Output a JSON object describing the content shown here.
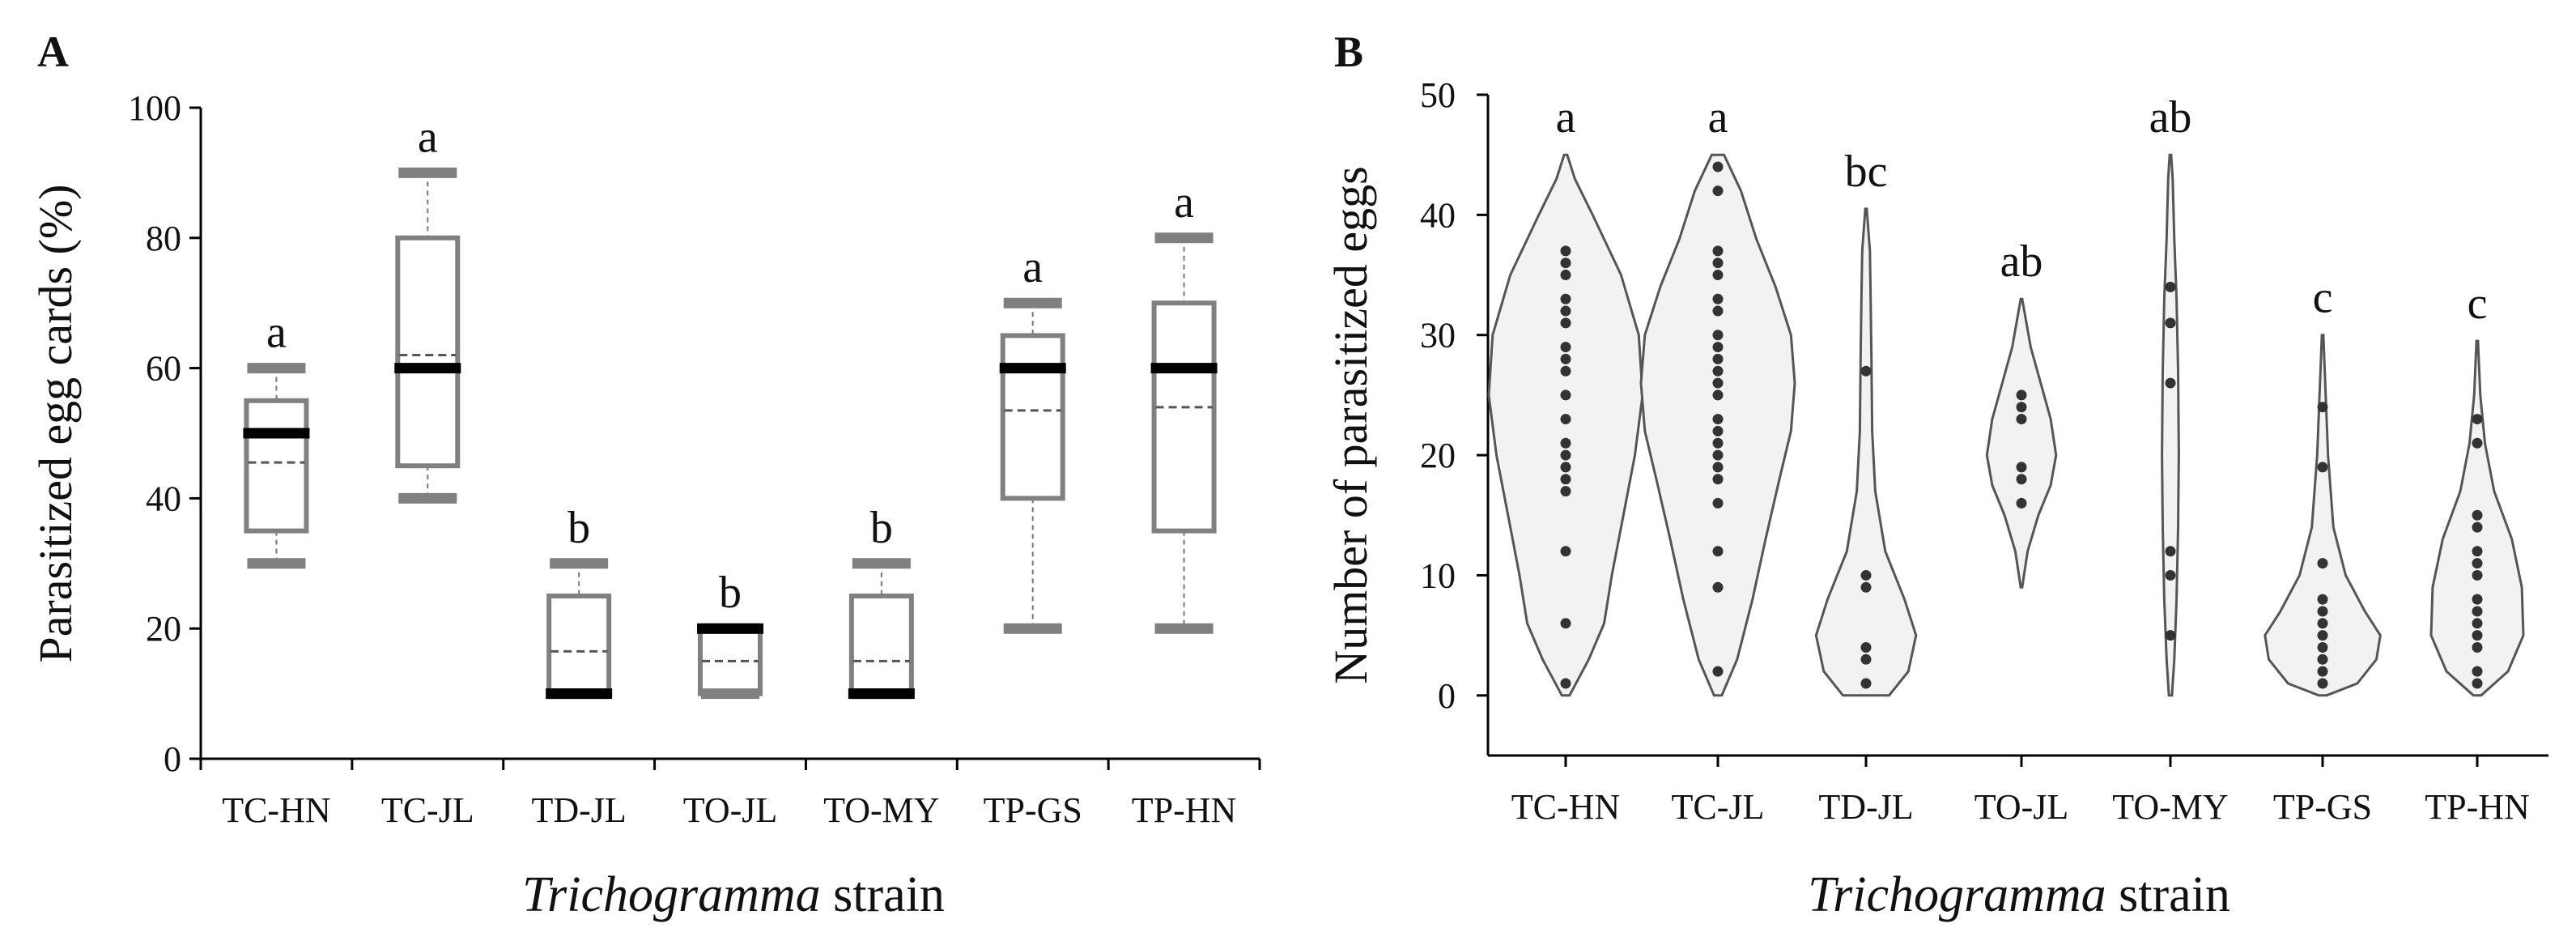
{
  "colors": {
    "box": "#808080",
    "median": "#000000",
    "mean": "#555555",
    "violin_fill": "#f2f2f2",
    "violin_stroke": "#555555",
    "dot": "#333333"
  },
  "chart_data": [
    {
      "panel_label": "A",
      "type": "box",
      "ylabel": "Parasitized egg cards (%)",
      "xlabel_italic": "Trichogramma",
      "xlabel_rest": " strain",
      "ylim": [
        0,
        100
      ],
      "yticks": [
        "0",
        "20",
        "40",
        "60",
        "80",
        "100"
      ],
      "categories": [
        "TC-HN",
        "TC-JL",
        "TD-JL",
        "TO-JL",
        "TO-MY",
        "TP-GS",
        "TP-HN"
      ],
      "boxes": [
        {
          "min": 30,
          "q1": 35,
          "median": 50,
          "mean": 45.5,
          "q3": 55,
          "max": 60,
          "letter": "a"
        },
        {
          "min": 40,
          "q1": 45,
          "median": 60,
          "mean": 62,
          "q3": 80,
          "max": 90,
          "letter": "a"
        },
        {
          "min": 10,
          "q1": 10,
          "median": 10,
          "mean": 16.5,
          "q3": 25,
          "max": 30,
          "letter": "b"
        },
        {
          "min": 10,
          "q1": 10,
          "median": 20,
          "mean": 15,
          "q3": 20,
          "max": 20,
          "letter": "b"
        },
        {
          "min": 10,
          "q1": 10,
          "median": 10,
          "mean": 15,
          "q3": 25,
          "max": 30,
          "letter": "b"
        },
        {
          "min": 20,
          "q1": 40,
          "median": 60,
          "mean": 53.5,
          "q3": 65,
          "max": 70,
          "letter": "a"
        },
        {
          "min": 20,
          "q1": 35,
          "median": 60,
          "mean": 54,
          "q3": 70,
          "max": 80,
          "letter": "a"
        }
      ]
    },
    {
      "panel_label": "B",
      "type": "violin",
      "ylabel": "Number of parasitized eggs",
      "xlabel_italic": "Trichogramma",
      "xlabel_rest": " strain",
      "ylim": [
        -5,
        50
      ],
      "yticks": [
        "0",
        "10",
        "20",
        "30",
        "40",
        "50"
      ],
      "categories": [
        "TC-HN",
        "TC-JL",
        "TD-JL",
        "TO-JL",
        "TO-MY",
        "TP-GS",
        "TP-HN"
      ],
      "violins": [
        {
          "letter": "a",
          "profile": [
            [
              0,
              0.05
            ],
            [
              3,
              0.3
            ],
            [
              6,
              0.5
            ],
            [
              10,
              0.6
            ],
            [
              15,
              0.75
            ],
            [
              20,
              0.9
            ],
            [
              25,
              1.0
            ],
            [
              30,
              0.95
            ],
            [
              35,
              0.72
            ],
            [
              40,
              0.35
            ],
            [
              43,
              0.12
            ],
            [
              45,
              0.02
            ]
          ],
          "points": [
            1,
            6,
            12,
            17,
            18,
            19,
            20,
            21,
            23,
            25,
            27,
            28,
            29,
            31,
            32,
            33,
            35,
            36,
            37
          ]
        },
        {
          "letter": "a",
          "profile": [
            [
              0,
              0.05
            ],
            [
              3,
              0.25
            ],
            [
              8,
              0.45
            ],
            [
              13,
              0.62
            ],
            [
              18,
              0.8
            ],
            [
              22,
              0.95
            ],
            [
              26,
              1.0
            ],
            [
              30,
              0.95
            ],
            [
              34,
              0.75
            ],
            [
              38,
              0.5
            ],
            [
              42,
              0.3
            ],
            [
              45,
              0.08
            ]
          ],
          "points": [
            2,
            9,
            12,
            16,
            18,
            19,
            20,
            21,
            22,
            23,
            25,
            26,
            27,
            28,
            29,
            30,
            32,
            33,
            35,
            36,
            37,
            42,
            44
          ]
        },
        {
          "letter": "bc",
          "profile": [
            [
              0,
              0.3
            ],
            [
              2,
              0.55
            ],
            [
              5,
              0.65
            ],
            [
              8,
              0.5
            ],
            [
              12,
              0.25
            ],
            [
              17,
              0.12
            ],
            [
              22,
              0.08
            ],
            [
              28,
              0.07
            ],
            [
              33,
              0.06
            ],
            [
              37,
              0.05
            ],
            [
              40.5,
              0.01
            ]
          ],
          "points": [
            1,
            3,
            4,
            9,
            10,
            27
          ]
        },
        {
          "letter": "ab",
          "profile": [
            [
              9,
              0.01
            ],
            [
              12,
              0.08
            ],
            [
              15,
              0.22
            ],
            [
              17.5,
              0.38
            ],
            [
              20,
              0.45
            ],
            [
              23,
              0.38
            ],
            [
              26,
              0.25
            ],
            [
              29,
              0.12
            ],
            [
              33,
              0.01
            ]
          ],
          "points": [
            16,
            18,
            19,
            23,
            24,
            25
          ]
        },
        {
          "letter": "ab",
          "profile": [
            [
              0,
              0.02
            ],
            [
              3,
              0.05
            ],
            [
              8,
              0.08
            ],
            [
              14,
              0.1
            ],
            [
              20,
              0.11
            ],
            [
              27,
              0.1
            ],
            [
              33,
              0.08
            ],
            [
              38,
              0.05
            ],
            [
              43,
              0.03
            ],
            [
              45,
              0.01
            ]
          ],
          "points": [
            5,
            10,
            12,
            26,
            31,
            34
          ]
        },
        {
          "letter": "c",
          "profile": [
            [
              0,
              0.05
            ],
            [
              1,
              0.45
            ],
            [
              3,
              0.7
            ],
            [
              5,
              0.75
            ],
            [
              7,
              0.55
            ],
            [
              10,
              0.3
            ],
            [
              14,
              0.14
            ],
            [
              20,
              0.07
            ],
            [
              25,
              0.04
            ],
            [
              30,
              0.01
            ]
          ],
          "points": [
            1,
            2,
            3,
            4,
            5,
            6,
            7,
            8,
            11,
            19,
            24
          ]
        },
        {
          "letter": "c",
          "profile": [
            [
              0,
              0.05
            ],
            [
              2,
              0.4
            ],
            [
              5,
              0.6
            ],
            [
              9,
              0.58
            ],
            [
              13,
              0.45
            ],
            [
              17,
              0.22
            ],
            [
              21,
              0.1
            ],
            [
              25,
              0.04
            ],
            [
              29.5,
              0.01
            ]
          ],
          "points": [
            1,
            2,
            4,
            5,
            6,
            7,
            8,
            10,
            11,
            12,
            14,
            15,
            21,
            23
          ]
        }
      ]
    }
  ]
}
